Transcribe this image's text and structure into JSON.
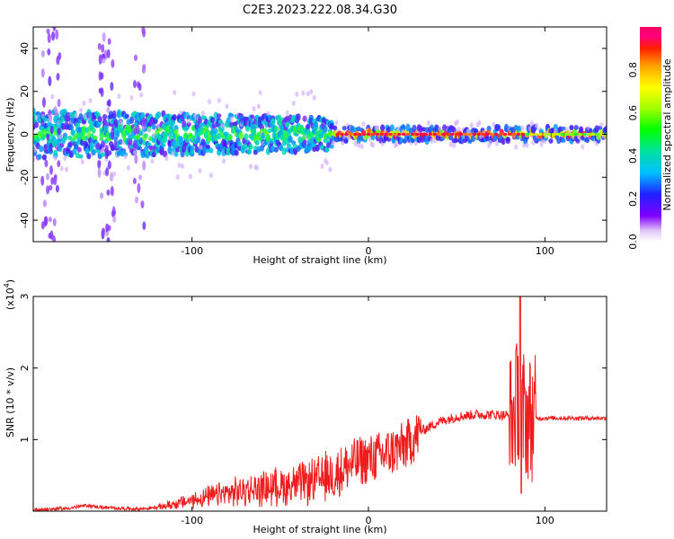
{
  "title": "C2E3.2023.222.08.34.G30",
  "colors": {
    "snr_line": "#ee1c1c",
    "axis": "#000000",
    "background": "#ffffff",
    "spectrogram_low": "#e6cff5",
    "spectrogram_high": "#ff0000"
  },
  "chart_data": [
    {
      "type": "heatmap",
      "title": "C2E3.2023.222.08.34.G30",
      "xlabel": "Height of straight line (km)",
      "ylabel": "Frequency (Hz)",
      "xlim": [
        -190,
        135
      ],
      "ylim": [
        -50,
        50
      ],
      "xticks": [
        -100,
        0,
        100
      ],
      "xtick_labels": [
        "-100",
        "0",
        "100"
      ],
      "yticks": [
        40,
        20,
        0,
        -20,
        -40
      ],
      "ytick_labels": [
        "40",
        "20",
        "0",
        "-20",
        "-40"
      ],
      "grid": false,
      "colorscale": "rainbow",
      "colorbar": {
        "label": "Normalized spectral amplitude",
        "range": [
          0,
          1
        ],
        "ticks": [
          0.0,
          0.2,
          0.4,
          0.6,
          0.8
        ],
        "tick_labels": [
          "0.0",
          "0.2",
          "0.4",
          "0.6",
          "0.8"
        ]
      },
      "description_points": {
        "band_center_hz": 0,
        "band_halfwidth_hz_low_altitude": 10,
        "band_halfwidth_hz_high_altitude": 3,
        "peak_amplitude_region_km": [
          -20,
          90
        ]
      }
    },
    {
      "type": "line",
      "xlabel": "Height of straight line (km)",
      "ylabel": "SNR (10 * v/v)",
      "y_multiplier_label": "(x10",
      "y_multiplier_exp": "4",
      "xlim": [
        -190,
        135
      ],
      "ylim": [
        0,
        3
      ],
      "xticks": [
        -100,
        0,
        100
      ],
      "xtick_labels": [
        "-100",
        "0",
        "100"
      ],
      "yticks": [
        1,
        2,
        3
      ],
      "ytick_labels": [
        "1",
        "2",
        "3"
      ],
      "grid": false,
      "series": [
        {
          "color": "#ee1c1c",
          "x": [
            -190,
            -170,
            -160,
            -150,
            -130,
            -120,
            -110,
            -100,
            -90,
            -80,
            -70,
            -60,
            -50,
            -40,
            -30,
            -20,
            -15,
            -10,
            -5,
            0,
            10,
            20,
            25,
            30,
            40,
            50,
            60,
            70,
            78,
            82,
            85,
            86,
            88,
            90,
            95,
            100,
            110,
            120,
            135
          ],
          "y": [
            0.02,
            0.04,
            0.08,
            0.05,
            0.03,
            0.05,
            0.1,
            0.15,
            0.2,
            0.25,
            0.28,
            0.32,
            0.35,
            0.38,
            0.42,
            0.5,
            0.58,
            0.65,
            0.7,
            0.72,
            0.8,
            0.9,
            1.0,
            1.12,
            1.25,
            1.32,
            1.35,
            1.35,
            1.34,
            1.3,
            1.6,
            1.0,
            1.4,
            1.3,
            1.3,
            1.3,
            1.3,
            1.3,
            1.3
          ],
          "spike": {
            "x": 86,
            "y_max": 3.05,
            "y_min": 0.25
          }
        }
      ]
    }
  ]
}
